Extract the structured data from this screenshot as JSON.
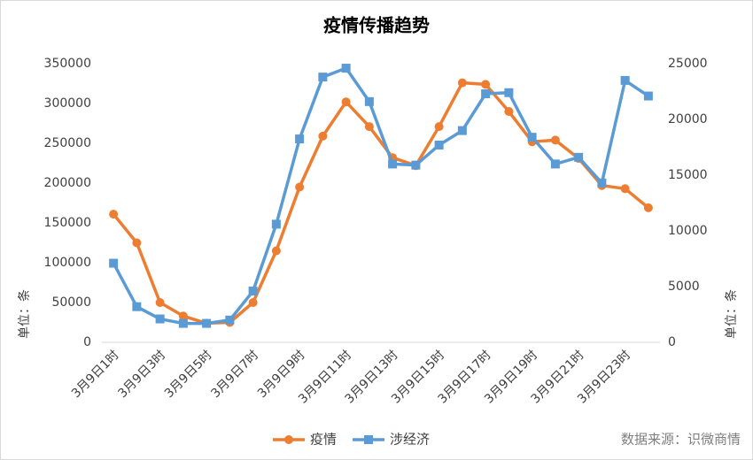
{
  "chart_data": {
    "type": "line",
    "title": "疫情传播趋势",
    "categories": [
      "3月9日1时",
      null,
      "3月9日3时",
      null,
      "3月9日5时",
      null,
      "3月9日7时",
      null,
      "3月9日9时",
      null,
      "3月9日11时",
      null,
      "3月9日13时",
      null,
      "3月9日15时",
      null,
      "3月9日17时",
      null,
      "3月9日19时",
      null,
      "3月9日21时",
      null,
      "3月9日23时",
      null
    ],
    "series": [
      {
        "name": "疫情",
        "color": "#ed7d31",
        "values": [
          161000,
          125000,
          50000,
          33000,
          24000,
          25000,
          50000,
          115000,
          195000,
          259000,
          302000,
          271000,
          232000,
          222000,
          271000,
          326000,
          324000,
          290000,
          252000,
          254000,
          231000,
          197000,
          193000,
          169000
        ]
      },
      {
        "name": "涉经济",
        "color": "#5b9bd5",
        "axis": "y2",
        "values": [
          7100,
          3200,
          2100,
          1700,
          1700,
          2000,
          4600,
          10600,
          18250,
          23800,
          24600,
          21600,
          16000,
          15900,
          17700,
          19000,
          22300,
          22400,
          18400,
          16000,
          16600,
          14300,
          23500,
          22100
        ]
      }
    ],
    "ylim": [
      0,
      350000
    ],
    "yticks": [
      0,
      50000,
      100000,
      150000,
      200000,
      250000,
      300000,
      350000
    ],
    "y2lim": [
      0,
      25000
    ],
    "y2ticks": [
      0,
      5000,
      10000,
      15000,
      20000,
      25000
    ],
    "y_label": "单位：条",
    "y2_label": "单位：条",
    "source": "数据来源：识微商情",
    "grid": false
  }
}
